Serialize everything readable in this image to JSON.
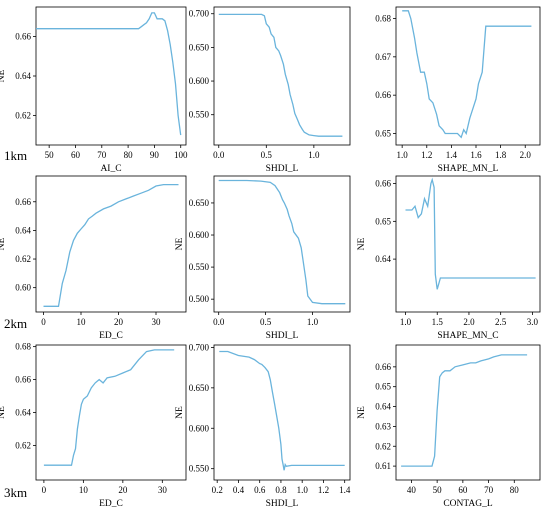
{
  "colors": {
    "line": "#6ab4dc",
    "axis": "#000000"
  },
  "scale_labels": [
    "1km",
    "2km",
    "3km"
  ],
  "chart_data": [
    {
      "type": "line",
      "ylabel": "NE",
      "xlabel": "AI_C",
      "xlim": [
        45,
        102
      ],
      "ylim": [
        0.605,
        0.675
      ],
      "xticks": [
        50,
        60,
        70,
        80,
        90,
        100
      ],
      "yticks": [
        0.62,
        0.64,
        0.66
      ],
      "x": [
        45,
        50,
        60,
        70,
        80,
        84,
        85,
        86,
        87,
        88,
        89,
        90,
        91,
        92,
        93,
        94,
        95,
        96,
        97,
        98,
        99,
        100
      ],
      "y": [
        0.664,
        0.664,
        0.664,
        0.664,
        0.664,
        0.664,
        0.665,
        0.666,
        0.667,
        0.669,
        0.672,
        0.672,
        0.669,
        0.669,
        0.669,
        0.668,
        0.663,
        0.656,
        0.647,
        0.636,
        0.62,
        0.61
      ]
    },
    {
      "type": "line",
      "ylabel": "",
      "xlabel": "SHDI_L",
      "xlim": [
        -0.05,
        1.38
      ],
      "ylim": [
        0.505,
        0.71
      ],
      "xticks": [
        0.0,
        0.5,
        1.0
      ],
      "yticks": [
        0.55,
        0.6,
        0.65,
        0.7
      ],
      "x": [
        0.0,
        0.3,
        0.45,
        0.48,
        0.5,
        0.53,
        0.55,
        0.58,
        0.6,
        0.63,
        0.65,
        0.68,
        0.7,
        0.73,
        0.75,
        0.78,
        0.8,
        0.83,
        0.85,
        0.88,
        0.9,
        0.95,
        1.0,
        1.05,
        1.3
      ],
      "y": [
        0.699,
        0.699,
        0.699,
        0.697,
        0.685,
        0.68,
        0.67,
        0.665,
        0.65,
        0.645,
        0.638,
        0.625,
        0.61,
        0.595,
        0.58,
        0.565,
        0.552,
        0.542,
        0.535,
        0.528,
        0.524,
        0.52,
        0.519,
        0.518,
        0.518
      ]
    },
    {
      "type": "line",
      "ylabel": "",
      "xlabel": "SHAPE_MN_L",
      "xlim": [
        0.95,
        2.12
      ],
      "ylim": [
        0.647,
        0.683
      ],
      "xticks": [
        1.0,
        1.2,
        1.4,
        1.6,
        1.8,
        2.0
      ],
      "yticks": [
        0.65,
        0.66,
        0.67,
        0.68
      ],
      "x": [
        1.0,
        1.05,
        1.07,
        1.1,
        1.12,
        1.15,
        1.18,
        1.2,
        1.22,
        1.25,
        1.28,
        1.3,
        1.33,
        1.35,
        1.4,
        1.45,
        1.48,
        1.5,
        1.52,
        1.55,
        1.58,
        1.6,
        1.62,
        1.65,
        1.68,
        2.05
      ],
      "y": [
        0.682,
        0.682,
        0.68,
        0.675,
        0.671,
        0.666,
        0.666,
        0.663,
        0.659,
        0.658,
        0.655,
        0.652,
        0.651,
        0.65,
        0.65,
        0.65,
        0.649,
        0.651,
        0.65,
        0.654,
        0.657,
        0.659,
        0.663,
        0.666,
        0.678,
        0.678
      ]
    },
    {
      "type": "line",
      "ylabel": "NE",
      "xlabel": "ED_C",
      "xlim": [
        -2,
        38
      ],
      "ylim": [
        0.583,
        0.678
      ],
      "xticks": [
        0,
        10,
        20,
        30
      ],
      "yticks": [
        0.6,
        0.62,
        0.64,
        0.66
      ],
      "x": [
        0,
        4,
        5,
        6,
        7,
        8,
        9,
        10,
        11,
        12,
        13,
        14,
        16,
        18,
        20,
        22,
        24,
        26,
        28,
        30,
        32,
        36
      ],
      "y": [
        0.587,
        0.587,
        0.603,
        0.612,
        0.625,
        0.633,
        0.638,
        0.641,
        0.644,
        0.648,
        0.65,
        0.652,
        0.655,
        0.657,
        0.66,
        0.662,
        0.664,
        0.666,
        0.668,
        0.671,
        0.672,
        0.672
      ]
    },
    {
      "type": "line",
      "ylabel": "NE",
      "xlabel": "SHDI_L",
      "xlim": [
        -0.05,
        1.4
      ],
      "ylim": [
        0.48,
        0.692
      ],
      "xticks": [
        0.0,
        0.5,
        1.0
      ],
      "yticks": [
        0.5,
        0.55,
        0.6,
        0.65
      ],
      "x": [
        0.0,
        0.3,
        0.45,
        0.55,
        0.6,
        0.65,
        0.68,
        0.7,
        0.73,
        0.75,
        0.78,
        0.8,
        0.85,
        0.88,
        0.9,
        0.93,
        0.95,
        1.0,
        1.1,
        1.35
      ],
      "y": [
        0.685,
        0.685,
        0.684,
        0.682,
        0.677,
        0.666,
        0.655,
        0.65,
        0.64,
        0.63,
        0.618,
        0.605,
        0.595,
        0.58,
        0.56,
        0.53,
        0.505,
        0.495,
        0.493,
        0.493
      ]
    },
    {
      "type": "line",
      "ylabel": "NE",
      "xlabel": "SHAPE_MN_C",
      "xlim": [
        0.85,
        3.12
      ],
      "ylim": [
        0.626,
        0.662
      ],
      "xticks": [
        1.0,
        1.5,
        2.0,
        2.5,
        3.0
      ],
      "yticks": [
        0.64,
        0.65,
        0.66
      ],
      "x": [
        1.0,
        1.1,
        1.15,
        1.2,
        1.25,
        1.3,
        1.35,
        1.4,
        1.42,
        1.45,
        1.47,
        1.5,
        1.55,
        3.05
      ],
      "y": [
        0.653,
        0.653,
        0.654,
        0.651,
        0.652,
        0.656,
        0.654,
        0.66,
        0.661,
        0.659,
        0.636,
        0.632,
        0.635,
        0.635
      ]
    },
    {
      "type": "line",
      "ylabel": "NE",
      "xlabel": "ED_C",
      "xlim": [
        -2,
        36
      ],
      "ylim": [
        0.599,
        0.681
      ],
      "xticks": [
        0,
        10,
        20,
        30
      ],
      "yticks": [
        0.62,
        0.64,
        0.66,
        0.68
      ],
      "x": [
        0,
        6,
        7,
        7.5,
        8,
        8.5,
        9,
        9.5,
        10,
        11,
        12,
        13,
        14,
        15,
        16,
        18,
        20,
        22,
        24,
        26,
        28,
        30,
        33
      ],
      "y": [
        0.608,
        0.608,
        0.608,
        0.614,
        0.618,
        0.63,
        0.638,
        0.645,
        0.648,
        0.65,
        0.655,
        0.658,
        0.66,
        0.658,
        0.661,
        0.662,
        0.664,
        0.666,
        0.672,
        0.677,
        0.678,
        0.678,
        0.678
      ]
    },
    {
      "type": "line",
      "ylabel": "NE",
      "xlabel": "SHDI_L",
      "xlim": [
        0.17,
        1.45
      ],
      "ylim": [
        0.536,
        0.703
      ],
      "xticks": [
        0.2,
        0.4,
        0.6,
        0.8,
        1.0,
        1.2,
        1.4
      ],
      "yticks": [
        0.55,
        0.6,
        0.65,
        0.7
      ],
      "x": [
        0.22,
        0.3,
        0.4,
        0.5,
        0.55,
        0.6,
        0.62,
        0.65,
        0.68,
        0.7,
        0.72,
        0.74,
        0.76,
        0.78,
        0.8,
        0.81,
        0.82,
        0.83,
        0.84,
        0.85,
        0.9,
        1.0,
        1.2,
        1.4
      ],
      "y": [
        0.695,
        0.695,
        0.69,
        0.688,
        0.685,
        0.68,
        0.679,
        0.675,
        0.67,
        0.66,
        0.645,
        0.63,
        0.615,
        0.6,
        0.58,
        0.562,
        0.555,
        0.548,
        0.555,
        0.553,
        0.554,
        0.554,
        0.554,
        0.554
      ]
    },
    {
      "type": "line",
      "ylabel": "NE",
      "xlabel": "CONTAG_L",
      "xlim": [
        34,
        90
      ],
      "ylim": [
        0.603,
        0.671
      ],
      "xticks": [
        40,
        50,
        60,
        70,
        80
      ],
      "yticks": [
        0.61,
        0.62,
        0.63,
        0.64,
        0.65,
        0.66
      ],
      "x": [
        36,
        40,
        45,
        48,
        49,
        50,
        51,
        52,
        53,
        55,
        57,
        60,
        63,
        65,
        67,
        70,
        72,
        75,
        80,
        85
      ],
      "y": [
        0.61,
        0.61,
        0.61,
        0.61,
        0.615,
        0.638,
        0.655,
        0.657,
        0.658,
        0.658,
        0.66,
        0.661,
        0.662,
        0.662,
        0.663,
        0.664,
        0.665,
        0.666,
        0.666,
        0.666
      ]
    }
  ]
}
